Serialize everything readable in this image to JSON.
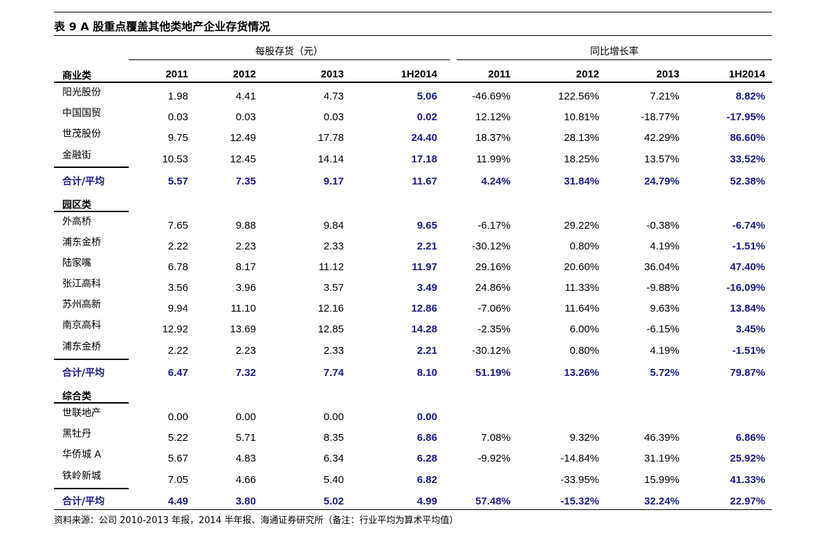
{
  "title": "表 9 A 股重点覆盖其他类地产企业存货情况",
  "groups": {
    "inventory": "每股存货（元）",
    "growth": "同比增长率"
  },
  "columns": [
    "2011",
    "2012",
    "2013",
    "1H2014",
    "2011",
    "2012",
    "2013",
    "1H2014"
  ],
  "sections": [
    {
      "label": "商业类",
      "rows": [
        {
          "name": "阳光股份",
          "values": [
            "1.98",
            "4.41",
            "4.73",
            "5.06",
            "-46.69%",
            "122.56%",
            "7.21%",
            "8.82%"
          ]
        },
        {
          "name": "中国国贸",
          "values": [
            "0.03",
            "0.03",
            "0.03",
            "0.02",
            "12.12%",
            "10.81%",
            "-18.77%",
            "-17.95%"
          ]
        },
        {
          "name": "世茂股份",
          "values": [
            "9.75",
            "12.49",
            "17.78",
            "24.40",
            "18.37%",
            "28.13%",
            "42.29%",
            "86.60%"
          ]
        },
        {
          "name": "金融街",
          "values": [
            "10.53",
            "12.45",
            "14.14",
            "17.18",
            "11.99%",
            "18.25%",
            "13.57%",
            "33.52%"
          ]
        }
      ],
      "total": {
        "name": "合计/平均",
        "values": [
          "5.57",
          "7.35",
          "9.17",
          "11.67",
          "4.24%",
          "31.84%",
          "24.79%",
          "52.38%"
        ]
      }
    },
    {
      "label": "园区类",
      "rows": [
        {
          "name": "外高桥",
          "values": [
            "7.65",
            "9.88",
            "9.84",
            "9.65",
            "-6.17%",
            "29.22%",
            "-0.38%",
            "-6.74%"
          ]
        },
        {
          "name": "浦东金桥",
          "values": [
            "2.22",
            "2.23",
            "2.33",
            "2.21",
            "-30.12%",
            "0.80%",
            "4.19%",
            "-1.51%"
          ]
        },
        {
          "name": "陆家嘴",
          "values": [
            "6.78",
            "8.17",
            "11.12",
            "11.97",
            "29.16%",
            "20.60%",
            "36.04%",
            "47.40%"
          ]
        },
        {
          "name": "张江高科",
          "values": [
            "3.56",
            "3.96",
            "3.57",
            "3.49",
            "24.86%",
            "11.33%",
            "-9.88%",
            "-16.09%"
          ]
        },
        {
          "name": "苏州高新",
          "values": [
            "9.94",
            "11.10",
            "12.16",
            "12.86",
            "-7.06%",
            "11.64%",
            "9.63%",
            "13.84%"
          ]
        },
        {
          "name": "南京高科",
          "values": [
            "12.92",
            "13.69",
            "12.85",
            "14.28",
            "-2.35%",
            "6.00%",
            "-6.15%",
            "3.45%"
          ]
        },
        {
          "name": "浦东金桥",
          "values": [
            "2.22",
            "2.23",
            "2.33",
            "2.21",
            "-30.12%",
            "0.80%",
            "4.19%",
            "-1.51%"
          ]
        }
      ],
      "total": {
        "name": "合计/平均",
        "values": [
          "6.47",
          "7.32",
          "7.74",
          "8.10",
          "51.19%",
          "13.26%",
          "5.72%",
          "79.87%"
        ]
      }
    },
    {
      "label": "综合类",
      "rows": [
        {
          "name": "世联地产",
          "values": [
            "0.00",
            "0.00",
            "0.00",
            "0.00",
            "",
            "",
            "",
            ""
          ]
        },
        {
          "name": "黑牡丹",
          "values": [
            "5.22",
            "5.71",
            "8.35",
            "6.86",
            "7.08%",
            "9.32%",
            "46.39%",
            "6.86%"
          ]
        },
        {
          "name": "华侨城 A",
          "values": [
            "5.67",
            "4.83",
            "6.34",
            "6.28",
            "-9.92%",
            "-14.84%",
            "31.19%",
            "25.92%"
          ]
        },
        {
          "name": "铁岭新城",
          "values": [
            "7.05",
            "4.66",
            "5.40",
            "6.82",
            "",
            "-33.95%",
            "15.99%",
            "41.33%"
          ]
        }
      ],
      "total": {
        "name": "合计/平均",
        "values": [
          "4.49",
          "3.80",
          "5.02",
          "4.99",
          "57.48%",
          "-15.32%",
          "32.24%",
          "22.97%"
        ]
      }
    }
  ],
  "footer": "资料来源：公司 2010-2013 年报，2014 半年报、海通证券研究所（备注：行业平均为算术平均值）",
  "colors": {
    "highlight": "#1a1a8c"
  }
}
